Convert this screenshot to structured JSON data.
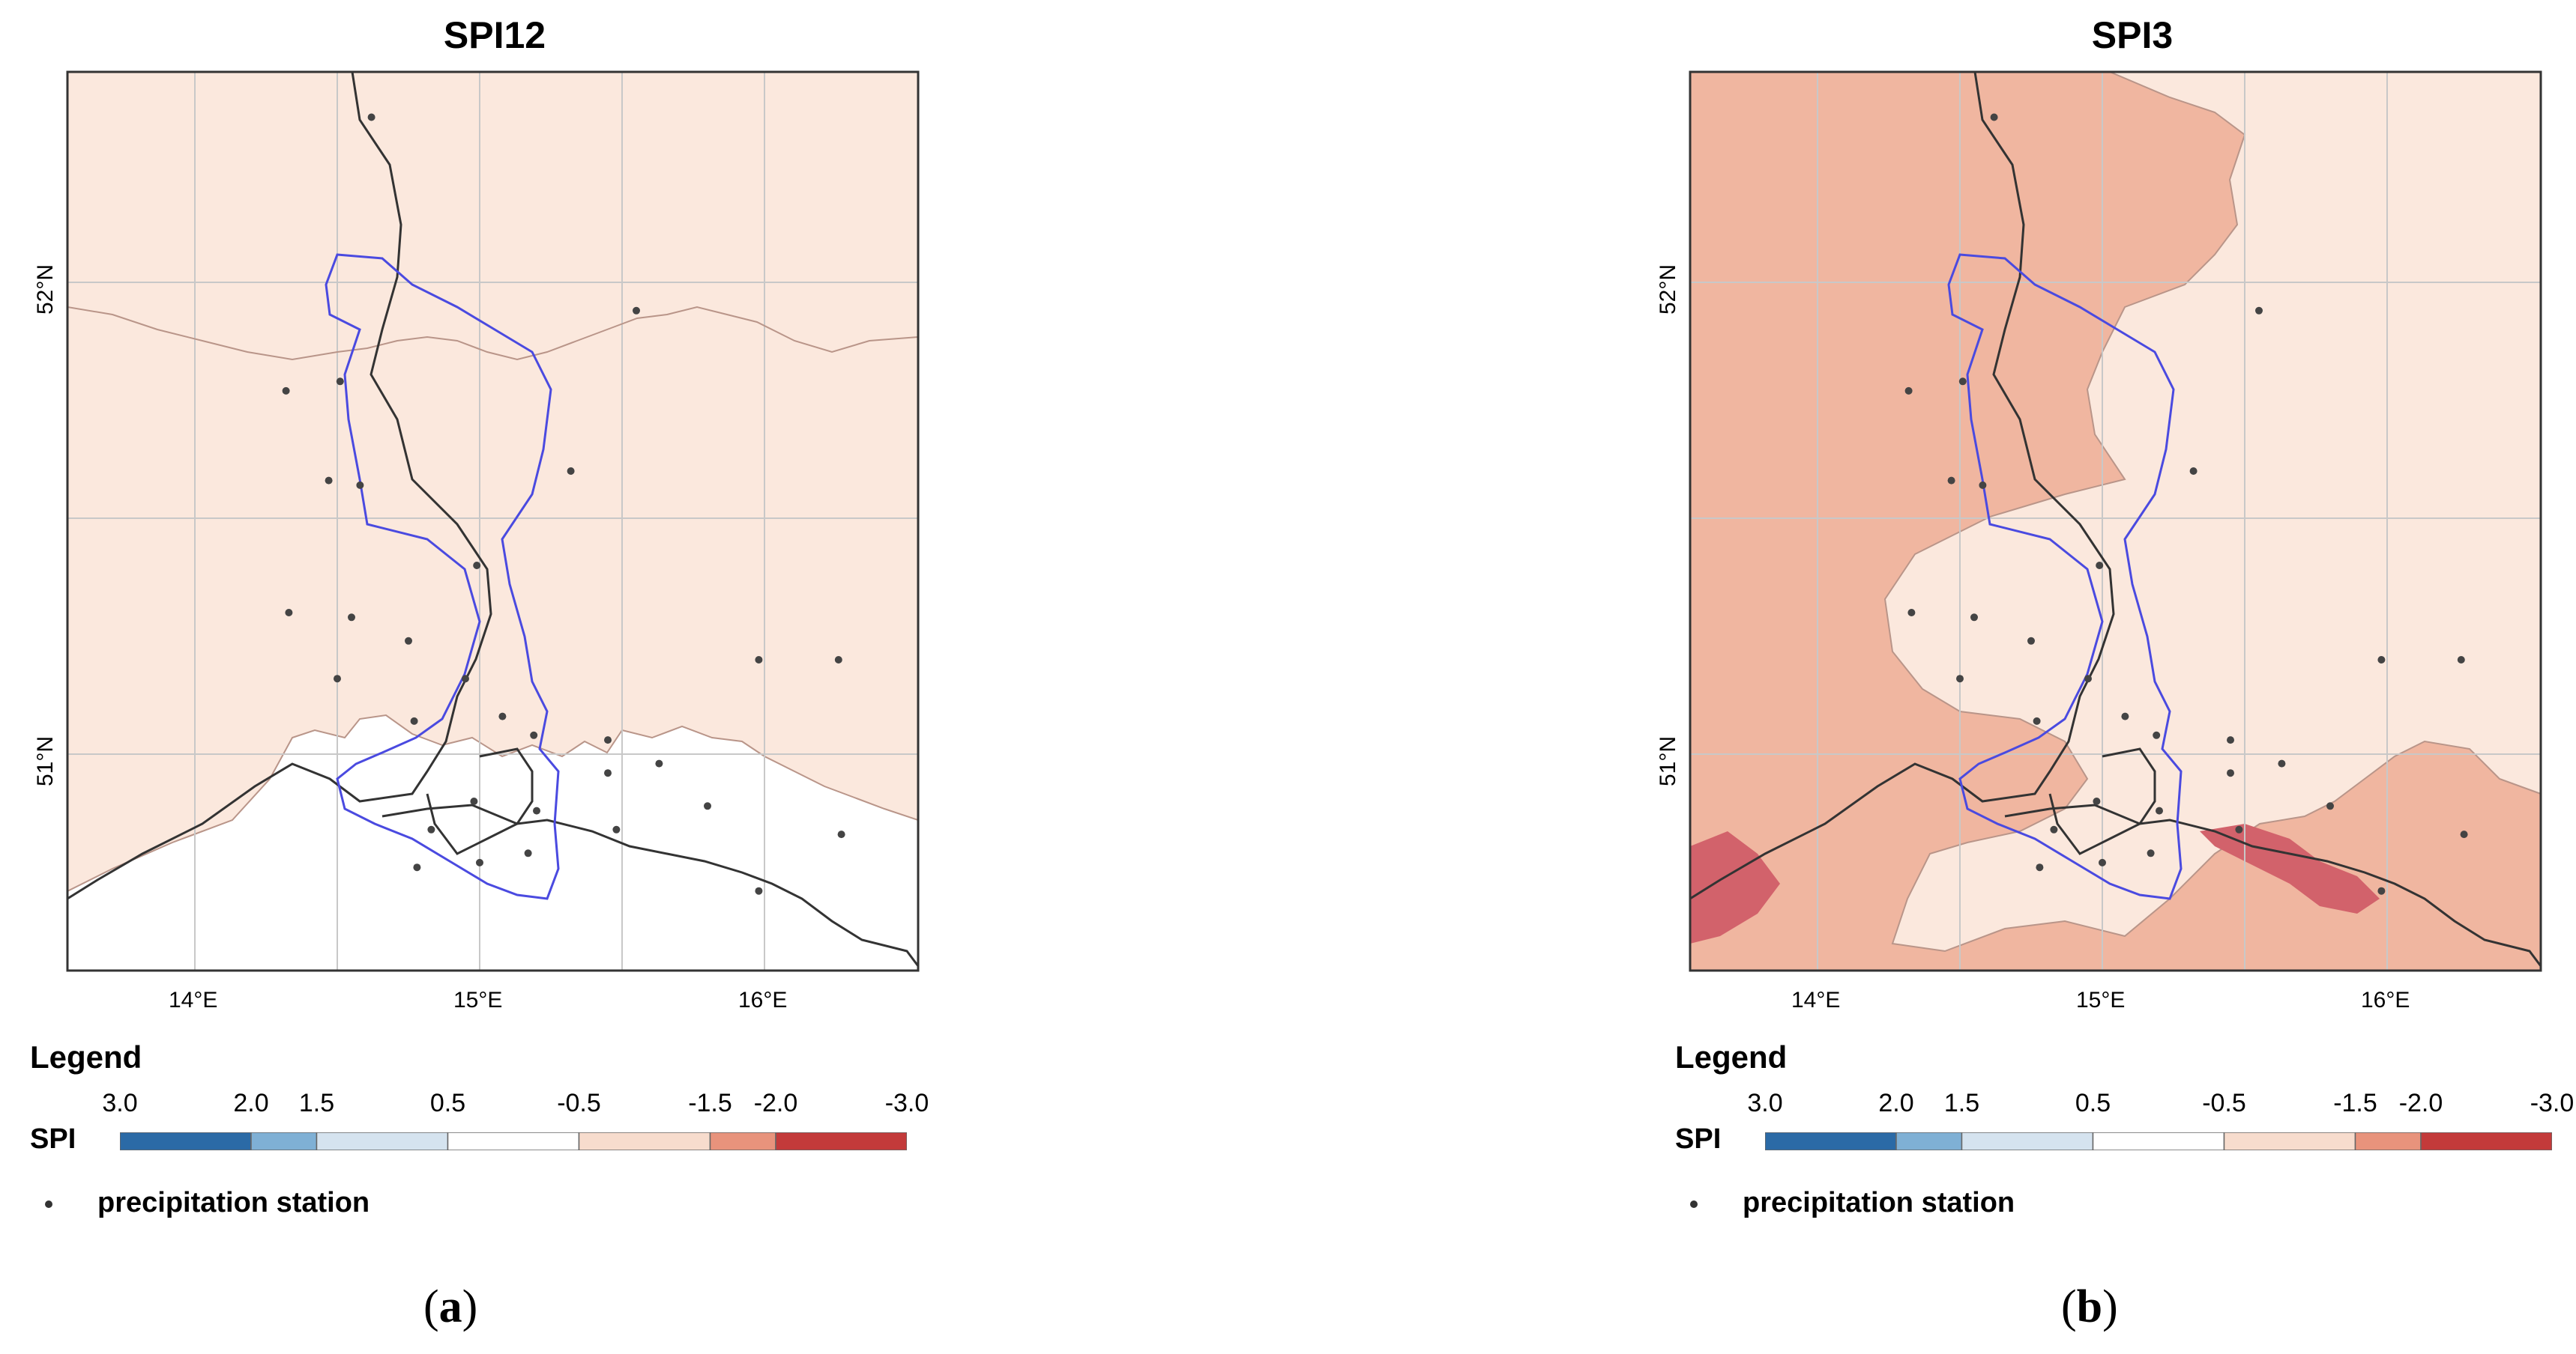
{
  "panels": [
    {
      "id": "a",
      "title": "SPI12",
      "caption_letter": "a",
      "background_class": "-0.5 to -1.5",
      "colors": {
        "dry_light": "#fbe8dd",
        "wet_normal": "#ffffff"
      }
    },
    {
      "id": "b",
      "title": "SPI3",
      "caption_letter": "b",
      "background_class": "-1.5 to -2.0",
      "colors": {
        "dry_medium": "#f0b6a0",
        "dry_light": "#fbe8dd",
        "dry_strong": "#d2626b"
      }
    }
  ],
  "axes": {
    "lat_labels": [
      "52°N",
      "51°N"
    ],
    "lon_labels": [
      "14°E",
      "15°E",
      "16°E"
    ]
  },
  "legend": {
    "title": "Legend",
    "index_label": "SPI",
    "tick_labels": [
      "3.0",
      "2.0",
      "1.5",
      "0.5",
      "-0.5",
      "-1.5",
      "-2.0",
      "-3.0"
    ],
    "tick_values": [
      3.0,
      2.0,
      1.5,
      0.5,
      -0.5,
      -1.5,
      -2.0,
      -3.0
    ],
    "class_colors": [
      "#2b6aa6",
      "#7fb0d5",
      "#d5e3ef",
      "#ffffff",
      "#f7dccd",
      "#e8937c",
      "#c33a3a"
    ],
    "station_label": "precipitation station"
  },
  "stations_lonlat": [
    [
      14.62,
      52.35
    ],
    [
      15.55,
      51.94
    ],
    [
      14.32,
      51.77
    ],
    [
      14.51,
      51.79
    ],
    [
      14.47,
      51.58
    ],
    [
      15.32,
      51.6
    ],
    [
      14.58,
      51.57
    ],
    [
      14.99,
      51.4
    ],
    [
      14.33,
      51.3
    ],
    [
      14.55,
      51.29
    ],
    [
      14.75,
      51.24
    ],
    [
      15.98,
      51.2
    ],
    [
      14.5,
      51.16
    ],
    [
      14.95,
      51.16
    ],
    [
      15.08,
      51.08
    ],
    [
      14.77,
      51.07
    ],
    [
      15.19,
      51.04
    ],
    [
      15.45,
      51.03
    ],
    [
      15.63,
      50.98
    ],
    [
      15.45,
      50.96
    ],
    [
      14.98,
      50.9
    ],
    [
      15.2,
      50.88
    ],
    [
      15.8,
      50.89
    ],
    [
      16.27,
      50.83
    ],
    [
      14.83,
      50.84
    ],
    [
      15.48,
      50.84
    ],
    [
      15.0,
      50.77
    ],
    [
      15.17,
      50.79
    ],
    [
      14.78,
      50.76
    ],
    [
      15.98,
      50.71
    ],
    [
      16.26,
      51.2
    ]
  ]
}
